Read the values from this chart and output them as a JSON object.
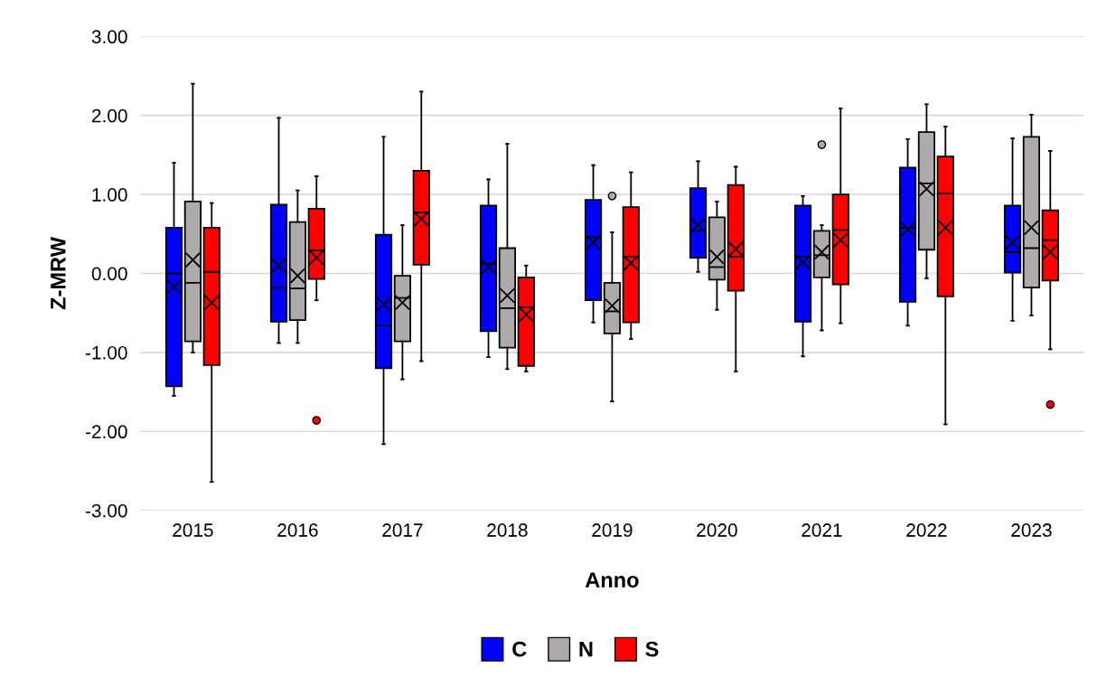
{
  "chart_data": {
    "type": "box",
    "xlabel": "Anno",
    "ylabel": "Z-MRW",
    "categories": [
      "2015",
      "2016",
      "2017",
      "2018",
      "2019",
      "2020",
      "2021",
      "2022",
      "2023"
    ],
    "ylim": [
      -3,
      3
    ],
    "yticks": [
      {
        "value": -3,
        "label": "-3.00"
      },
      {
        "value": -2,
        "label": "-2.00"
      },
      {
        "value": -1,
        "label": "-1.00"
      },
      {
        "value": 0,
        "label": "0.00"
      },
      {
        "value": 1,
        "label": "1.00"
      },
      {
        "value": 2,
        "label": "2.00"
      },
      {
        "value": 3,
        "label": "3.00"
      }
    ],
    "grid": "y",
    "legend": "bottom",
    "marker": "cross",
    "series": [
      {
        "name": "C",
        "color": "#0000ff",
        "boxes": [
          {
            "low": -1.55,
            "q1": -1.43,
            "median": 0.0,
            "q3": 0.58,
            "high": 1.4,
            "mean": -0.17
          },
          {
            "low": -0.88,
            "q1": -0.61,
            "median": -0.18,
            "q3": 0.87,
            "high": 1.97,
            "mean": 0.1
          },
          {
            "low": -2.16,
            "q1": -1.2,
            "median": -0.66,
            "q3": 0.49,
            "high": 1.73,
            "mean": -0.39
          },
          {
            "low": -1.06,
            "q1": -0.73,
            "median": 0.12,
            "q3": 0.86,
            "high": 1.19,
            "mean": 0.08
          },
          {
            "low": -0.62,
            "q1": -0.34,
            "median": 0.46,
            "q3": 0.93,
            "high": 1.37,
            "mean": 0.39
          },
          {
            "low": 0.02,
            "q1": 0.2,
            "median": 0.54,
            "q3": 1.08,
            "high": 1.42,
            "mean": 0.61
          },
          {
            "low": -1.05,
            "q1": -0.61,
            "median": 0.21,
            "q3": 0.86,
            "high": 0.98,
            "mean": 0.14
          },
          {
            "low": -0.66,
            "q1": -0.36,
            "median": 0.58,
            "q3": 1.34,
            "high": 1.7,
            "mean": 0.56
          },
          {
            "low": -0.6,
            "q1": 0.01,
            "median": 0.27,
            "q3": 0.86,
            "high": 1.71,
            "mean": 0.39
          }
        ]
      },
      {
        "name": "N",
        "color": "#aeaaaa",
        "boxes": [
          {
            "low": -1.0,
            "q1": -0.86,
            "median": -0.12,
            "q3": 0.91,
            "high": 2.4,
            "mean": 0.17
          },
          {
            "low": -0.88,
            "q1": -0.59,
            "median": -0.19,
            "q3": 0.65,
            "high": 1.05,
            "mean": -0.03
          },
          {
            "low": -1.34,
            "q1": -0.86,
            "median": -0.31,
            "q3": -0.03,
            "high": 0.61,
            "mean": -0.37
          },
          {
            "low": -1.21,
            "q1": -0.94,
            "median": -0.44,
            "q3": 0.32,
            "high": 1.64,
            "mean": -0.28
          },
          {
            "low": -1.62,
            "q1": -0.76,
            "median": -0.48,
            "q3": -0.12,
            "high": 0.52,
            "mean": -0.41,
            "outliers": [
              0.98
            ]
          },
          {
            "low": -0.46,
            "q1": -0.08,
            "median": 0.08,
            "q3": 0.71,
            "high": 0.91,
            "mean": 0.21
          },
          {
            "low": -0.72,
            "q1": -0.05,
            "median": 0.23,
            "q3": 0.54,
            "high": 0.61,
            "mean": 0.27,
            "outliers": [
              1.63
            ]
          },
          {
            "low": -0.06,
            "q1": 0.3,
            "median": 1.14,
            "q3": 1.79,
            "high": 2.14,
            "mean": 1.07
          },
          {
            "low": -0.53,
            "q1": -0.18,
            "median": 0.32,
            "q3": 1.73,
            "high": 2.01,
            "mean": 0.58
          }
        ]
      },
      {
        "name": "S",
        "color": "#ff0000",
        "boxes": [
          {
            "low": -2.64,
            "q1": -1.16,
            "median": 0.02,
            "q3": 0.58,
            "high": 0.89,
            "mean": -0.37
          },
          {
            "low": -0.34,
            "q1": -0.07,
            "median": 0.29,
            "q3": 0.82,
            "high": 1.23,
            "mean": 0.2,
            "outliers": [
              -1.86
            ]
          },
          {
            "low": -1.11,
            "q1": 0.11,
            "median": 0.77,
            "q3": 1.3,
            "high": 2.3,
            "mean": 0.69
          },
          {
            "low": -1.24,
            "q1": -1.17,
            "median": -0.43,
            "q3": -0.05,
            "high": 0.1,
            "mean": -0.52
          },
          {
            "low": -0.83,
            "q1": -0.62,
            "median": 0.21,
            "q3": 0.84,
            "high": 1.28,
            "mean": 0.13
          },
          {
            "low": -1.24,
            "q1": -0.22,
            "median": 0.21,
            "q3": 1.12,
            "high": 1.35,
            "mean": 0.31
          },
          {
            "low": -0.63,
            "q1": -0.14,
            "median": 0.55,
            "q3": 1.0,
            "high": 2.09,
            "mean": 0.42
          },
          {
            "low": -1.91,
            "q1": -0.29,
            "median": 1.01,
            "q3": 1.48,
            "high": 1.86,
            "mean": 0.58
          },
          {
            "low": -0.96,
            "q1": -0.09,
            "median": 0.42,
            "q3": 0.8,
            "high": 1.55,
            "mean": 0.27,
            "outliers": [
              -1.66
            ]
          }
        ]
      }
    ]
  }
}
